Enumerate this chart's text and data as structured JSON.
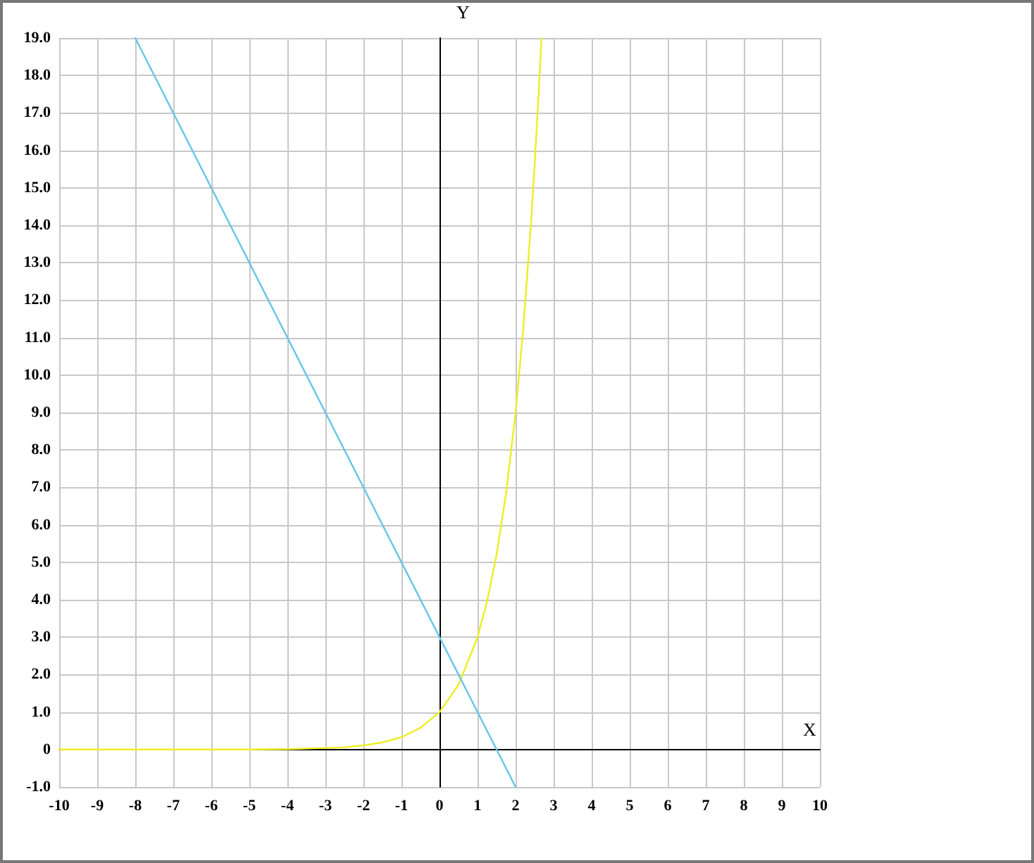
{
  "chart_data": {
    "type": "line",
    "xlabel": "X",
    "ylabel": "Y",
    "xlim": [
      -10,
      10
    ],
    "xticks": [
      -10,
      -9,
      -8,
      -7,
      -6,
      -5,
      -4,
      -3,
      -2,
      -1,
      0,
      1,
      2,
      3,
      4,
      5,
      6,
      7,
      8,
      9,
      10
    ],
    "ylim": [
      -1,
      19
    ],
    "yticks": [
      {
        "value": -1,
        "label": "-1.0"
      },
      0,
      {
        "value": 1,
        "label": "1.0"
      },
      {
        "value": 2,
        "label": "2.0"
      },
      {
        "value": 3,
        "label": "3.0"
      },
      {
        "value": 4,
        "label": "4.0"
      },
      {
        "value": 5,
        "label": "5.0"
      },
      {
        "value": 6,
        "label": "6.0"
      },
      {
        "value": 7,
        "label": "7.0"
      },
      {
        "value": 8,
        "label": "8.0"
      },
      {
        "value": 9,
        "label": "9.0"
      },
      {
        "value": 10,
        "label": "10.0"
      },
      {
        "value": 11,
        "label": "11.0"
      },
      {
        "value": 12,
        "label": "12.0"
      },
      {
        "value": 13,
        "label": "13.0"
      },
      {
        "value": 14,
        "label": "14.0"
      },
      {
        "value": 15,
        "label": "15.0"
      },
      {
        "value": 16,
        "label": "16.0"
      },
      {
        "value": 17,
        "label": "17.0"
      },
      {
        "value": 18,
        "label": "18.0"
      },
      {
        "value": 19,
        "label": "19.0"
      }
    ],
    "grid": true,
    "marker": "none",
    "line_style": "solid",
    "series": [
      {
        "color": "#eeee22",
        "x": [
          -10,
          -8,
          -6,
          -5,
          -4,
          -3,
          -2.5,
          -2,
          -1.5,
          -1,
          -0.5,
          0,
          0.5,
          1,
          1.25,
          1.5,
          1.75,
          2,
          2.2,
          2.4,
          2.5,
          2.6,
          2.68
        ],
        "values": [
          0,
          0,
          0,
          0,
          0.01,
          0.04,
          0.06,
          0.11,
          0.19,
          0.33,
          0.58,
          1,
          1.73,
          3,
          3.95,
          5.2,
          6.84,
          9,
          11.21,
          13.97,
          15.59,
          17.4,
          19
        ]
      },
      {
        "color": "#66c4ea",
        "x": [
          -8,
          2
        ],
        "values": [
          19,
          -1
        ]
      }
    ]
  }
}
